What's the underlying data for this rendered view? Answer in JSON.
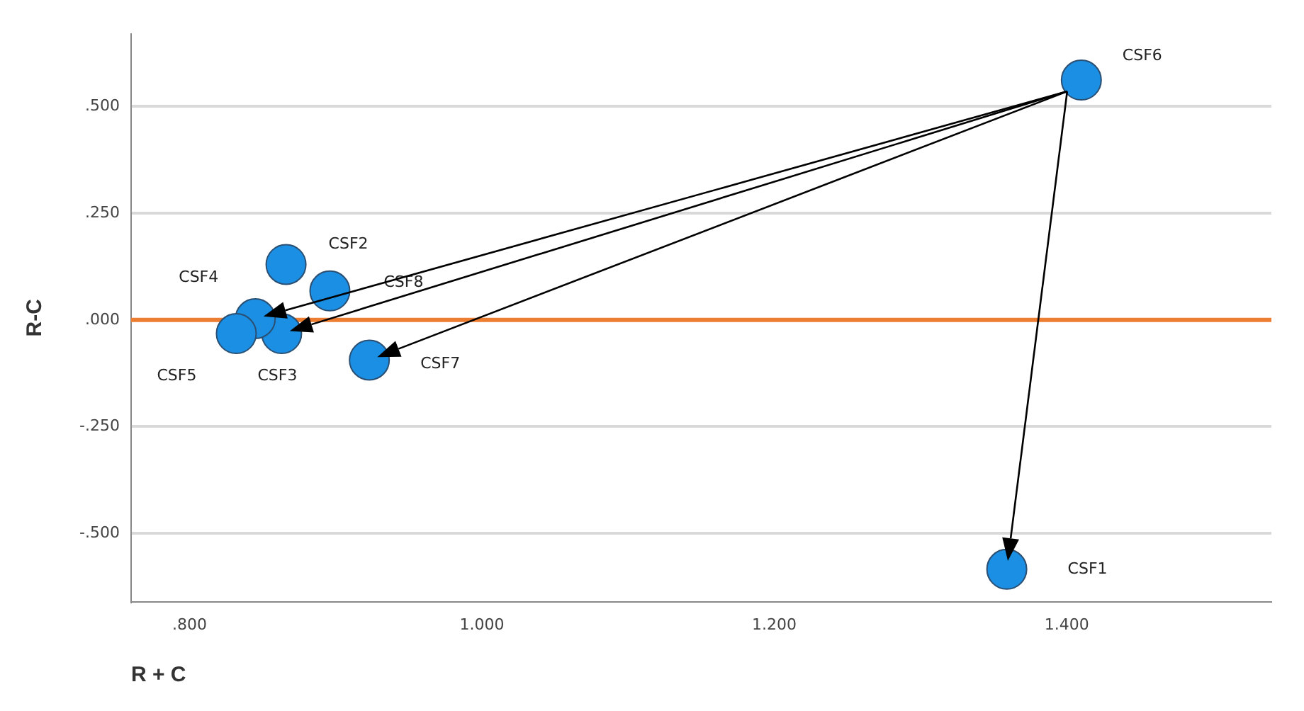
{
  "chart_data": {
    "type": "scatter",
    "xlabel": "R + C",
    "ylabel": "R-C",
    "x": [
      1.359,
      0.866,
      0.863,
      0.845,
      0.832,
      1.41,
      0.923,
      0.896
    ],
    "series": [
      {
        "color": "#1a8fe3",
        "values": [
          -0.584,
          0.13,
          -0.032,
          0.003,
          -0.032,
          0.562,
          -0.094,
          0.068
        ]
      }
    ],
    "xlim": [
      0.76,
      1.54
    ],
    "ylim": [
      -0.66,
      0.67
    ],
    "xticks": [
      {
        "value": 0.8,
        "label": ".800"
      },
      {
        "value": 1.0,
        "label": "1.000"
      },
      {
        "value": 1.2,
        "label": "1.200"
      },
      {
        "value": 1.4,
        "label": "1.400"
      }
    ],
    "yticks": [
      {
        "value": -0.5,
        "label": "-.500"
      },
      {
        "value": -0.25,
        "label": "-.250"
      },
      {
        "value": 0,
        "label": ".000"
      },
      {
        "value": 0.25,
        "label": ".250"
      },
      {
        "value": 0.5,
        "label": ".500"
      }
    ],
    "grid": "y",
    "legend": false,
    "marker": "circle",
    "ref_lines": [
      {
        "axis": "y",
        "value": 0,
        "color": "#ed7d31"
      }
    ],
    "annotations": [
      "CSF1",
      "CSF2",
      "CSF3",
      "CSF4",
      "CSF5",
      "CSF6",
      "CSF7",
      "CSF8"
    ]
  }
}
